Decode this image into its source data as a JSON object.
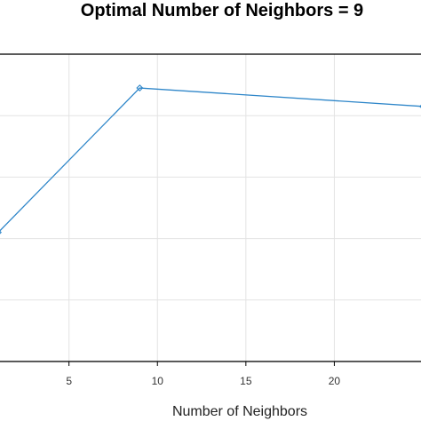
{
  "chart_data": {
    "type": "line",
    "title": "Optimal Number of Neighbors = 9",
    "xlabel": "Number of Neighbors",
    "ylabel": "",
    "x": [
      1,
      9,
      25
    ],
    "series": [
      {
        "values": [
          0.42,
          0.89,
          0.83
        ]
      }
    ],
    "xlim": [
      1,
      25
    ],
    "ylim": [
      0.0,
      1.0
    ],
    "xticks": [
      5,
      10,
      15,
      20
    ],
    "grid": true,
    "colors": {
      "line": "#2e86c9",
      "grid": "#e3e3e3",
      "frame": "#000000"
    }
  }
}
